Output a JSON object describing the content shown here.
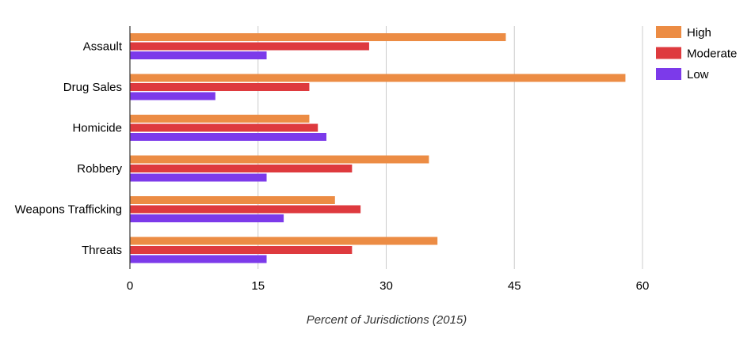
{
  "chart_data": {
    "type": "bar",
    "orientation": "horizontal",
    "categories": [
      "Assault",
      "Drug Sales",
      "Homicide",
      "Robbery",
      "Weapons Trafficking",
      "Threats"
    ],
    "series": [
      {
        "name": "High",
        "color": "#ec8c44",
        "values": [
          44,
          58,
          21,
          35,
          24,
          36
        ]
      },
      {
        "name": "Moderate",
        "color": "#de3a3e",
        "values": [
          28,
          21,
          22,
          26,
          27,
          26
        ]
      },
      {
        "name": "Low",
        "color": "#7c3aea",
        "values": [
          16,
          10,
          23,
          16,
          18,
          16
        ]
      }
    ],
    "x_ticks": [
      "0",
      "15",
      "30",
      "45",
      "60"
    ],
    "xlim": [
      0,
      72
    ],
    "xlabel": "Percent of Jurisdictions (2015)",
    "grid": "vertical",
    "legend_position": "top-right"
  }
}
